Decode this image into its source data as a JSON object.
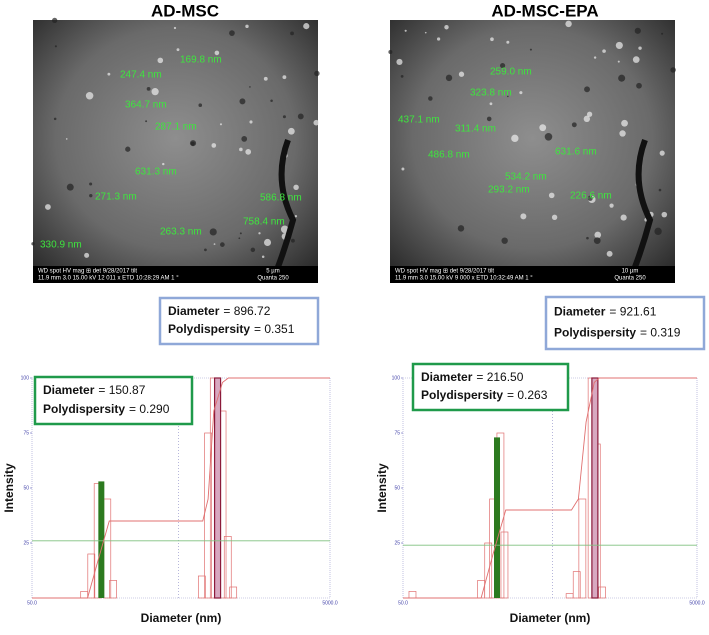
{
  "panels": [
    {
      "title": "AD-MSC",
      "sem": {
        "labels": [
          "247.4 nm",
          "169.8 nm",
          "364.7 nm",
          "287.1 nm",
          "631.3 nm",
          "271.3 nm",
          "586.8 nm",
          "263.3 nm",
          "758.4 nm",
          "330.9 nm"
        ],
        "footer": [
          "WD  spot  HV  mag ⊞  det  9/28/2017  tilt",
          "11.9 mm  3.0  15.00 kV  12 011 x  ETD  10:28:29 AM  1 °"
        ],
        "scale": "5 µm",
        "instrument": "Quanta 250"
      },
      "box_top": {
        "diameter_label": "Diameter",
        "diameter_value": "= 896.72",
        "pd_label": "Polydispersity",
        "pd_value": "= 0.351"
      },
      "box_chart": {
        "diameter_label": "Diameter",
        "diameter_value": "= 150.87",
        "pd_label": "Polydispersity",
        "pd_value": "= 0.290"
      },
      "chart": {
        "type": "bar",
        "xlabel": "Diameter (nm)",
        "ylabel": "Intensity",
        "log_x": true,
        "xlim": [
          50,
          5000
        ],
        "ylim": [
          0,
          100
        ],
        "yticks": [
          25,
          50,
          75,
          100
        ],
        "xticks": [
          {
            "value": 50,
            "label": "50.0"
          },
          {
            "value": 5000,
            "label": "5000.0"
          }
        ],
        "bars": {
          "color": "#e07070",
          "x": [
            112,
            125,
            138,
            160,
            175,
            690,
            760,
            830,
            950,
            1030,
            1120
          ],
          "values": [
            3,
            20,
            52,
            45,
            8,
            10,
            75,
            100,
            85,
            28,
            5
          ]
        },
        "peaks": {
          "colors": [
            "#2c7a1f",
            "#d8a8c0"
          ],
          "x": [
            146,
            880
          ],
          "values": [
            53,
            100
          ]
        },
        "cumulative": {
          "color": "#e07070",
          "x": [
            50,
            118,
            140,
            165,
            700,
            760,
            830,
            950,
            1040,
            5000
          ],
          "values": [
            0,
            0,
            18,
            35,
            35,
            45,
            85,
            98,
            100,
            100
          ]
        },
        "baseline": {
          "color": "#7fc07f",
          "value": 26
        },
        "ref_line": 480
      }
    },
    {
      "title": "AD-MSC-EPA",
      "sem": {
        "labels": [
          "259.0 nm",
          "323.8 nm",
          "437.1 nm",
          "311.4 nm",
          "486.8 nm",
          "631.6 nm",
          "534.2 nm",
          "293.2 nm",
          "226.6 nm"
        ],
        "footer": [
          "WD  spot  HV  mag ⊞  det  9/28/2017  tilt",
          "11.9 mm  3.0  15.00 kV  9 000 x  ETD  10:32:49 AM  1 °"
        ],
        "scale": "10 µm",
        "instrument": "Quanta 250"
      },
      "box_top": {
        "diameter_label": "Diameter",
        "diameter_value": "= 921.61",
        "pd_label": "Polydispersity",
        "pd_value": "= 0.319"
      },
      "box_chart": {
        "diameter_label": "Diameter",
        "diameter_value": "= 216.50",
        "pd_label": "Polydispersity",
        "pd_value": "= 0.263"
      },
      "chart": {
        "type": "bar",
        "xlabel": "Diameter (nm)",
        "ylabel": "Intensity",
        "log_x": true,
        "xlim": [
          50,
          5000
        ],
        "ylim": [
          0,
          100
        ],
        "yticks": [
          25,
          50,
          75,
          100
        ],
        "xticks": [
          {
            "value": 50,
            "label": "50.0"
          },
          {
            "value": 5000,
            "label": "5000.0"
          }
        ],
        "bars": {
          "color": "#e07070",
          "x": [
            58,
            170,
            190,
            205,
            230,
            245,
            680,
            760,
            830,
            960,
            1040,
            1130
          ],
          "values": [
            3,
            8,
            25,
            45,
            75,
            30,
            2,
            12,
            45,
            100,
            70,
            5
          ]
        },
        "peaks": {
          "colors": [
            "#2c7a1f",
            "#d8a8c0"
          ],
          "x": [
            218,
            1010
          ],
          "values": [
            73,
            100
          ]
        },
        "cumulative": {
          "color": "#e07070",
          "x": [
            50,
            170,
            205,
            250,
            700,
            780,
            880,
            1000,
            1080,
            5000
          ],
          "values": [
            0,
            0,
            20,
            40,
            40,
            45,
            80,
            98,
            100,
            100
          ]
        },
        "baseline": {
          "color": "#7fc07f",
          "value": 24
        },
        "ref_line": 520
      }
    }
  ]
}
